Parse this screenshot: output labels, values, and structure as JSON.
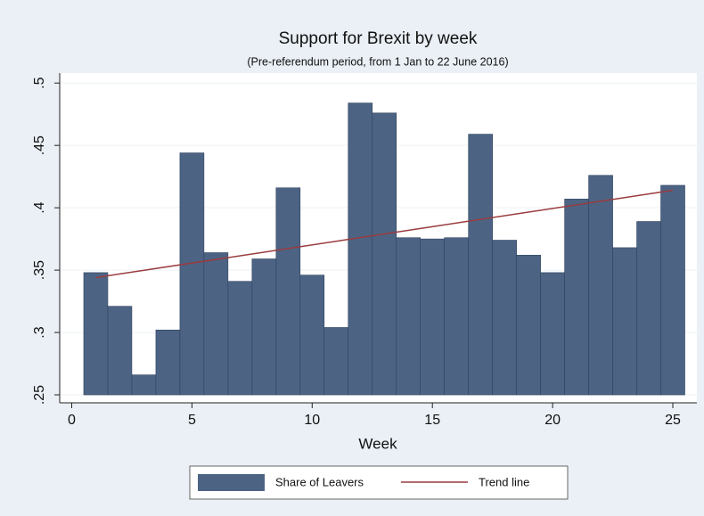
{
  "chart_data": {
    "type": "bar",
    "title": "Support for Brexit by week",
    "subtitle": "(Pre-referendum period, from 1 Jan to  22 June 2016)",
    "x_label": "Week",
    "x": [
      1,
      2,
      3,
      4,
      5,
      6,
      7,
      8,
      9,
      10,
      11,
      12,
      13,
      14,
      15,
      16,
      17,
      18,
      19,
      20,
      21,
      22,
      23,
      24,
      25
    ],
    "series": [
      {
        "name": "Share of Leavers",
        "type": "bar",
        "color": "#4c6384",
        "values": [
          0.348,
          0.321,
          0.266,
          0.302,
          0.444,
          0.364,
          0.341,
          0.359,
          0.416,
          0.346,
          0.304,
          0.484,
          0.476,
          0.376,
          0.375,
          0.376,
          0.459,
          0.374,
          0.362,
          0.348,
          0.407,
          0.426,
          0.368,
          0.389,
          0.418
        ]
      },
      {
        "name": "Trend line",
        "type": "line",
        "color": "#9a3b3e",
        "x": [
          1,
          25
        ],
        "values": [
          0.344,
          0.414
        ]
      }
    ],
    "base": 0.25,
    "xlim": [
      -0.5,
      26
    ],
    "xticks": [
      0,
      5,
      10,
      15,
      20,
      25
    ],
    "ylim": [
      0.2436,
      0.508
    ],
    "yticks": [
      {
        "value": 0.25,
        "label": ".25"
      },
      {
        "value": 0.3,
        "label": ".3"
      },
      {
        "value": 0.35,
        "label": ".35"
      },
      {
        "value": 0.4,
        "label": ".4"
      },
      {
        "value": 0.45,
        "label": ".45"
      },
      {
        "value": 0.5,
        "label": ".5"
      }
    ],
    "grid": true,
    "legend": "bottom"
  }
}
